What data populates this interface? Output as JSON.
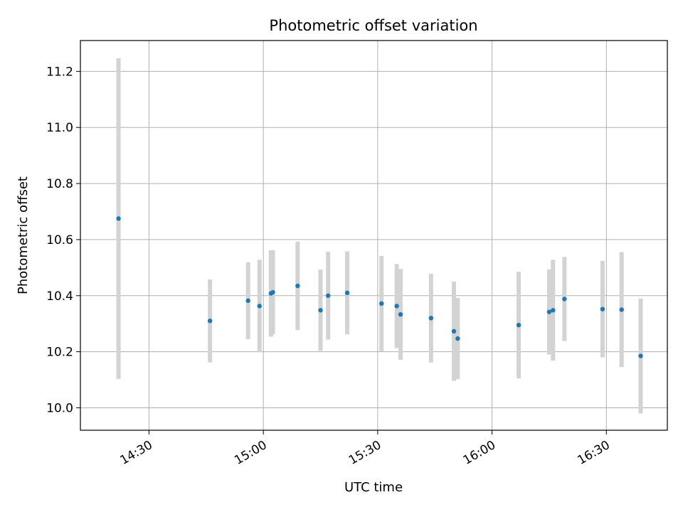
{
  "chart_data": {
    "type": "scatter",
    "title": "Photometric offset variation",
    "xlabel": "UTC time",
    "ylabel": "Photometric offset",
    "x_ticks": [
      "14:30",
      "15:00",
      "15:30",
      "16:00",
      "16:30"
    ],
    "y_ticks": [
      "10.0",
      "10.2",
      "10.4",
      "10.6",
      "10.8",
      "11.0",
      "11.2"
    ],
    "xlim": [
      "14:12",
      "16:46"
    ],
    "ylim": [
      9.92,
      11.31
    ],
    "grid": true,
    "marker_color": "#1f77b4",
    "errorbar_color": "#d3d3d3",
    "points": [
      {
        "t": "14:22",
        "y": 10.675,
        "err": 0.572
      },
      {
        "t": "14:46",
        "y": 10.31,
        "err": 0.148
      },
      {
        "t": "14:56",
        "y": 10.382,
        "err": 0.137
      },
      {
        "t": "14:59",
        "y": 10.363,
        "err": 0.165
      },
      {
        "t": "15:02",
        "y": 10.408,
        "err": 0.154
      },
      {
        "t": "15:02.5",
        "y": 10.412,
        "err": 0.15
      },
      {
        "t": "15:09",
        "y": 10.435,
        "err": 0.158
      },
      {
        "t": "15:15",
        "y": 10.348,
        "err": 0.145
      },
      {
        "t": "15:17",
        "y": 10.4,
        "err": 0.157
      },
      {
        "t": "15:22",
        "y": 10.41,
        "err": 0.148
      },
      {
        "t": "15:31",
        "y": 10.372,
        "err": 0.17
      },
      {
        "t": "15:35",
        "y": 10.363,
        "err": 0.15
      },
      {
        "t": "15:36",
        "y": 10.333,
        "err": 0.162
      },
      {
        "t": "15:44",
        "y": 10.32,
        "err": 0.158
      },
      {
        "t": "15:50",
        "y": 10.273,
        "err": 0.177
      },
      {
        "t": "15:51",
        "y": 10.247,
        "err": 0.145
      },
      {
        "t": "16:07",
        "y": 10.295,
        "err": 0.19
      },
      {
        "t": "16:15",
        "y": 10.342,
        "err": 0.152
      },
      {
        "t": "16:16",
        "y": 10.348,
        "err": 0.18
      },
      {
        "t": "16:19",
        "y": 10.388,
        "err": 0.15
      },
      {
        "t": "16:29",
        "y": 10.352,
        "err": 0.172
      },
      {
        "t": "16:34",
        "y": 10.35,
        "err": 0.205
      },
      {
        "t": "16:39",
        "y": 10.185,
        "err": 0.205
      }
    ]
  }
}
